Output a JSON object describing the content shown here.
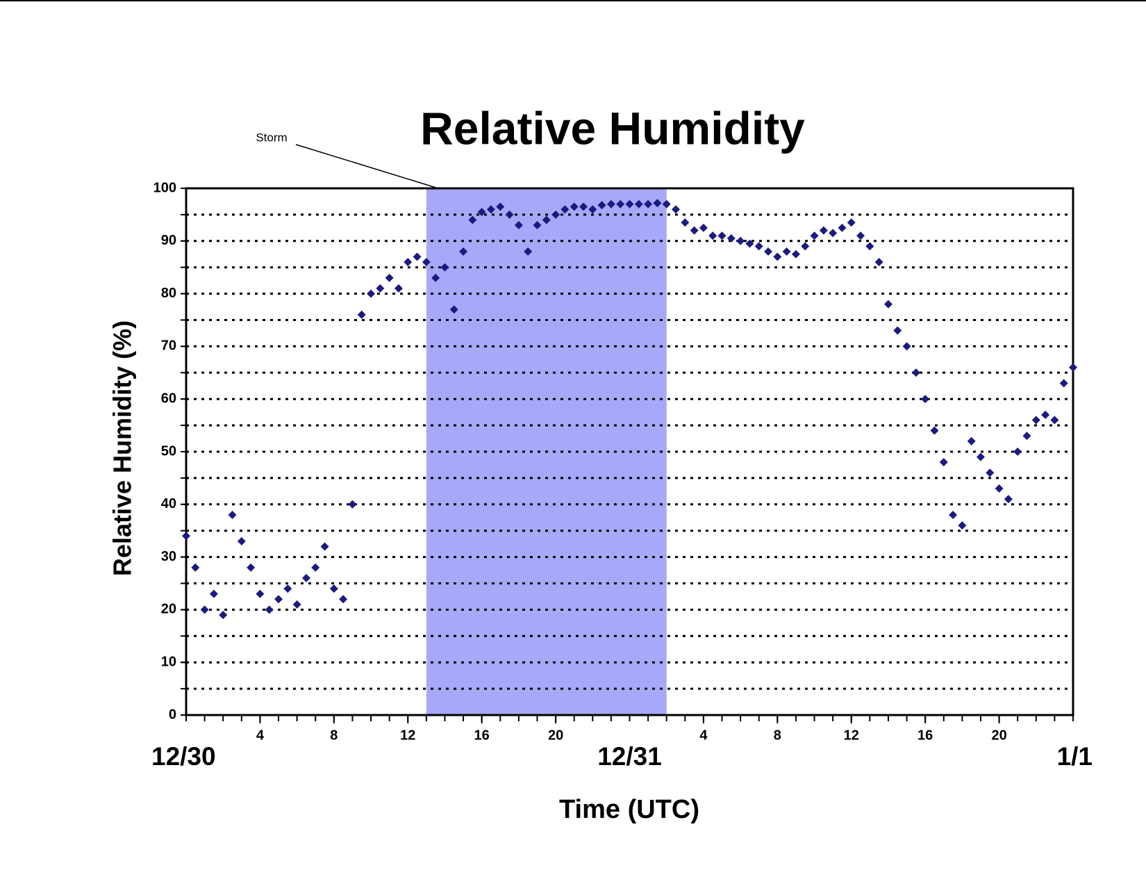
{
  "chart_data": {
    "type": "scatter",
    "title": "Relative Humidity",
    "x_label": "Time (UTC)",
    "y_label": "Relative Humidity (%)",
    "annotation": {
      "text": "Storm",
      "start": 13,
      "end": 26,
      "color": "#a8a8f8"
    },
    "xlim": [
      0,
      48
    ],
    "ylim": [
      0,
      100
    ],
    "yticks": [
      0,
      10,
      20,
      30,
      40,
      50,
      60,
      70,
      80,
      90,
      100
    ],
    "grid_lines": [
      5,
      10,
      15,
      20,
      25,
      30,
      35,
      40,
      45,
      50,
      55,
      60,
      65,
      70,
      75,
      80,
      85,
      90,
      95
    ],
    "xticks": [
      4,
      8,
      12,
      16,
      20,
      {
        "value": 28,
        "label": "4"
      },
      {
        "value": 32,
        "label": "8"
      },
      {
        "value": 36,
        "label": "12"
      },
      {
        "value": 40,
        "label": "16"
      },
      {
        "value": 44,
        "label": "20"
      }
    ],
    "x_minor_ticks": [
      0,
      1,
      2,
      3,
      4,
      5,
      6,
      7,
      8,
      9,
      10,
      11,
      12,
      13,
      14,
      15,
      16,
      17,
      18,
      19,
      20,
      21,
      22,
      23,
      24,
      25,
      26,
      27,
      28,
      29,
      30,
      31,
      32,
      33,
      34,
      35,
      36,
      37,
      38,
      39,
      40,
      41,
      42,
      43,
      44,
      45,
      46,
      47,
      48
    ],
    "date_labels": [
      {
        "value": 0,
        "label": "12/30"
      },
      {
        "value": 24,
        "label": "12/31"
      },
      {
        "value": 48,
        "label": "1/1"
      }
    ],
    "x": [
      0,
      0.5,
      1,
      1.5,
      2,
      2.5,
      3,
      3.5,
      4,
      4.5,
      5,
      5.5,
      6,
      6.5,
      7,
      7.5,
      8,
      8.5,
      9,
      9.5,
      10,
      10.5,
      11,
      11.5,
      12,
      12.5,
      13,
      13.5,
      14,
      14.5,
      15,
      15.5,
      16,
      16.5,
      17,
      17.5,
      18,
      18.5,
      19,
      19.5,
      20,
      20.5,
      21,
      21.5,
      22,
      22.5,
      23,
      23.5,
      24,
      24.5,
      25,
      25.5,
      26,
      26.5,
      27,
      27.5,
      28,
      28.5,
      29,
      29.5,
      30,
      30.5,
      31,
      31.5,
      32,
      32.5,
      33,
      33.5,
      34,
      34.5,
      35,
      35.5,
      36,
      36.5,
      37,
      37.5,
      38,
      38.5,
      39,
      39.5,
      40,
      40.5,
      41,
      41.5,
      42,
      42.5,
      43,
      43.5,
      44,
      44.5,
      45,
      45.5,
      46,
      46.5,
      47,
      47.5,
      48
    ],
    "series": [
      {
        "name": "Relative Humidity",
        "color": "#1a1a80",
        "values": [
          34,
          28,
          20,
          23,
          19,
          38,
          33,
          28,
          23,
          20,
          22,
          24,
          21,
          26,
          28,
          32,
          24,
          22,
          40,
          76,
          80,
          81,
          83,
          81,
          86,
          87,
          86,
          83,
          85,
          77,
          88,
          94,
          95.5,
          96,
          96.5,
          95,
          93,
          88,
          93,
          94,
          95,
          96,
          96.5,
          96.5,
          96,
          96.8,
          97,
          97,
          97,
          97,
          97,
          97.2,
          97,
          96,
          93.5,
          92,
          92.5,
          91,
          91,
          90.5,
          90,
          89.5,
          89,
          88,
          87,
          88,
          87.5,
          89,
          91,
          92,
          91.5,
          92.5,
          93.5,
          91,
          89,
          86,
          78,
          73,
          70,
          65,
          60,
          54,
          48,
          38,
          36,
          52,
          49,
          46,
          43,
          41,
          50,
          53,
          56,
          57,
          56,
          63,
          66
        ]
      }
    ]
  }
}
